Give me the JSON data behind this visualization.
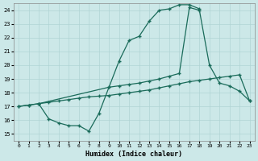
{
  "bg_color": "#cce8e8",
  "grid_color": "#b0d4d4",
  "line_color": "#1a6b5a",
  "xlabel": "Humidex (Indice chaleur)",
  "xlim": [
    -0.5,
    23.5
  ],
  "ylim": [
    14.5,
    24.5
  ],
  "xticks": [
    0,
    1,
    2,
    3,
    4,
    5,
    6,
    7,
    8,
    9,
    10,
    11,
    12,
    13,
    14,
    15,
    16,
    17,
    18,
    19,
    20,
    21,
    22,
    23
  ],
  "yticks": [
    15,
    16,
    17,
    18,
    19,
    20,
    21,
    22,
    23,
    24
  ],
  "line1_x": [
    0,
    1,
    2,
    9,
    10,
    11,
    12,
    13,
    14,
    15,
    16,
    17,
    18
  ],
  "line1_y": [
    17.0,
    17.1,
    17.2,
    18.4,
    20.3,
    21.8,
    22.1,
    23.2,
    24.0,
    24.1,
    24.4,
    24.4,
    24.1
  ],
  "line2_x": [
    0,
    1,
    2,
    3,
    4,
    5,
    6,
    7,
    8,
    9,
    10,
    11,
    12,
    13,
    14,
    15,
    16,
    17,
    18,
    19,
    20,
    21,
    22,
    23
  ],
  "line2_y": [
    17.0,
    17.1,
    17.2,
    17.3,
    17.4,
    17.5,
    17.6,
    17.7,
    17.75,
    17.8,
    17.9,
    18.0,
    18.1,
    18.2,
    18.35,
    18.5,
    18.65,
    18.8,
    18.9,
    19.0,
    19.1,
    19.2,
    19.3,
    17.4
  ],
  "line3_x": [
    2,
    3,
    4,
    5,
    6,
    7,
    8,
    9,
    10,
    11,
    12,
    13,
    14,
    15,
    16,
    17,
    18,
    19,
    20,
    21,
    22,
    23
  ],
  "line3_y": [
    17.2,
    16.1,
    15.8,
    15.6,
    15.6,
    15.2,
    16.5,
    18.4,
    18.5,
    18.6,
    18.7,
    18.85,
    19.0,
    19.2,
    19.4,
    24.2,
    24.0,
    20.0,
    18.7,
    18.5,
    18.1,
    17.4
  ]
}
